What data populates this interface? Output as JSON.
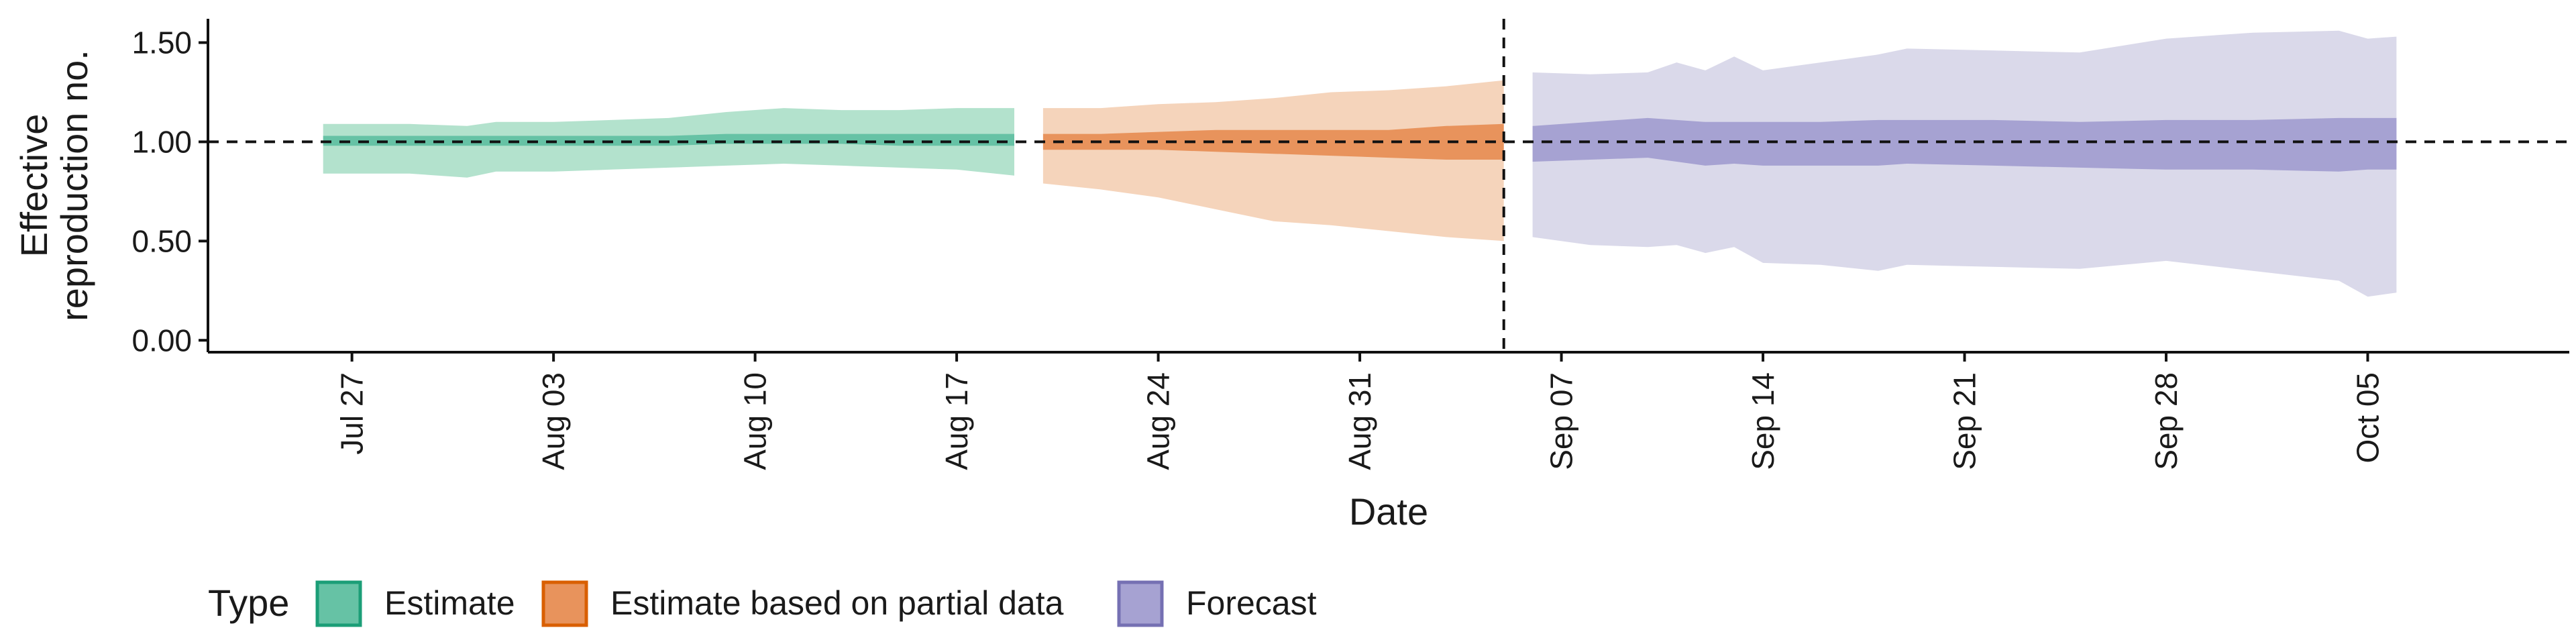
{
  "chart_data": {
    "type": "area",
    "xlabel": "Date",
    "ylabel_lines": [
      "Effective",
      "reproduction no."
    ],
    "x_axis": {
      "start": "2020-07-22",
      "end": "2020-10-12",
      "ticks": [
        {
          "date": "2020-07-27",
          "label": "Jul 27"
        },
        {
          "date": "2020-08-03",
          "label": "Aug 03"
        },
        {
          "date": "2020-08-10",
          "label": "Aug 10"
        },
        {
          "date": "2020-08-17",
          "label": "Aug 17"
        },
        {
          "date": "2020-08-24",
          "label": "Aug 24"
        },
        {
          "date": "2020-08-31",
          "label": "Aug 31"
        },
        {
          "date": "2020-09-07",
          "label": "Sep 07"
        },
        {
          "date": "2020-09-14",
          "label": "Sep 14"
        },
        {
          "date": "2020-09-21",
          "label": "Sep 21"
        },
        {
          "date": "2020-09-28",
          "label": "Sep 28"
        },
        {
          "date": "2020-10-05",
          "label": "Oct 05"
        }
      ]
    },
    "y_axis": {
      "range": [
        -0.06,
        1.62
      ],
      "ticks": [
        {
          "value": 0,
          "label": "0.00"
        },
        {
          "value": 0.5,
          "label": "0.50"
        },
        {
          "value": 1.0,
          "label": "1.00"
        },
        {
          "value": 1.5,
          "label": "1.50"
        }
      ]
    },
    "reference_lines": {
      "horizontal_y": 1.0,
      "vertical_date": "2020-09-05"
    },
    "legend": {
      "title": "Type",
      "position": "bottom-left",
      "items": [
        "Estimate",
        "Estimate based on partial data",
        "Forecast"
      ]
    },
    "series": [
      {
        "name": "Estimate",
        "fill_outer": "#b3e2cd",
        "fill_inner": "#66c2a5",
        "edge": "#1b9e77",
        "points": [
          {
            "date": "2020-07-26",
            "lo90": 0.84,
            "hi90": 1.09,
            "lo20": 0.98,
            "hi20": 1.03
          },
          {
            "date": "2020-07-29",
            "lo90": 0.84,
            "hi90": 1.09,
            "lo20": 0.98,
            "hi20": 1.03
          },
          {
            "date": "2020-07-31",
            "lo90": 0.82,
            "hi90": 1.08,
            "lo20": 0.98,
            "hi20": 1.03
          },
          {
            "date": "2020-08-01",
            "lo90": 0.85,
            "hi90": 1.1,
            "lo20": 0.98,
            "hi20": 1.03
          },
          {
            "date": "2020-08-03",
            "lo90": 0.85,
            "hi90": 1.1,
            "lo20": 0.98,
            "hi20": 1.03
          },
          {
            "date": "2020-08-05",
            "lo90": 0.86,
            "hi90": 1.11,
            "lo20": 0.98,
            "hi20": 1.03
          },
          {
            "date": "2020-08-07",
            "lo90": 0.87,
            "hi90": 1.12,
            "lo20": 0.98,
            "hi20": 1.03
          },
          {
            "date": "2020-08-09",
            "lo90": 0.88,
            "hi90": 1.15,
            "lo20": 0.99,
            "hi20": 1.04
          },
          {
            "date": "2020-08-11",
            "lo90": 0.89,
            "hi90": 1.17,
            "lo20": 0.99,
            "hi20": 1.04
          },
          {
            "date": "2020-08-13",
            "lo90": 0.88,
            "hi90": 1.16,
            "lo20": 0.99,
            "hi20": 1.04
          },
          {
            "date": "2020-08-15",
            "lo90": 0.87,
            "hi90": 1.16,
            "lo20": 0.98,
            "hi20": 1.04
          },
          {
            "date": "2020-08-17",
            "lo90": 0.86,
            "hi90": 1.17,
            "lo20": 0.98,
            "hi20": 1.04
          },
          {
            "date": "2020-08-19",
            "lo90": 0.83,
            "hi90": 1.17,
            "lo20": 0.98,
            "hi20": 1.04
          }
        ]
      },
      {
        "name": "Estimate based on partial data",
        "fill_outer": "#f5d4bb",
        "fill_inner": "#e8935c",
        "edge": "#d95f02",
        "points": [
          {
            "date": "2020-08-20",
            "lo90": 0.79,
            "hi90": 1.17,
            "lo20": 0.96,
            "hi20": 1.04
          },
          {
            "date": "2020-08-22",
            "lo90": 0.76,
            "hi90": 1.17,
            "lo20": 0.96,
            "hi20": 1.04
          },
          {
            "date": "2020-08-24",
            "lo90": 0.72,
            "hi90": 1.19,
            "lo20": 0.96,
            "hi20": 1.05
          },
          {
            "date": "2020-08-26",
            "lo90": 0.66,
            "hi90": 1.2,
            "lo20": 0.95,
            "hi20": 1.06
          },
          {
            "date": "2020-08-28",
            "lo90": 0.6,
            "hi90": 1.22,
            "lo20": 0.94,
            "hi20": 1.06
          },
          {
            "date": "2020-08-30",
            "lo90": 0.58,
            "hi90": 1.25,
            "lo20": 0.93,
            "hi20": 1.06
          },
          {
            "date": "2020-09-01",
            "lo90": 0.55,
            "hi90": 1.26,
            "lo20": 0.92,
            "hi20": 1.06
          },
          {
            "date": "2020-09-03",
            "lo90": 0.52,
            "hi90": 1.28,
            "lo20": 0.91,
            "hi20": 1.08
          },
          {
            "date": "2020-09-05",
            "lo90": 0.5,
            "hi90": 1.31,
            "lo20": 0.91,
            "hi20": 1.09
          }
        ]
      },
      {
        "name": "Forecast",
        "fill_outer": "#dad9ea",
        "fill_inner": "#a6a2d2",
        "edge": "#7570b3",
        "points": [
          {
            "date": "2020-09-06",
            "lo90": 0.52,
            "hi90": 1.35,
            "lo20": 0.9,
            "hi20": 1.08
          },
          {
            "date": "2020-09-08",
            "lo90": 0.48,
            "hi90": 1.34,
            "lo20": 0.91,
            "hi20": 1.1
          },
          {
            "date": "2020-09-10",
            "lo90": 0.47,
            "hi90": 1.35,
            "lo20": 0.92,
            "hi20": 1.12
          },
          {
            "date": "2020-09-11",
            "lo90": 0.48,
            "hi90": 1.4,
            "lo20": 0.9,
            "hi20": 1.11
          },
          {
            "date": "2020-09-12",
            "lo90": 0.44,
            "hi90": 1.36,
            "lo20": 0.88,
            "hi20": 1.1
          },
          {
            "date": "2020-09-13",
            "lo90": 0.47,
            "hi90": 1.43,
            "lo20": 0.89,
            "hi20": 1.1
          },
          {
            "date": "2020-09-14",
            "lo90": 0.39,
            "hi90": 1.36,
            "lo20": 0.88,
            "hi20": 1.1
          },
          {
            "date": "2020-09-16",
            "lo90": 0.38,
            "hi90": 1.4,
            "lo20": 0.88,
            "hi20": 1.1
          },
          {
            "date": "2020-09-18",
            "lo90": 0.35,
            "hi90": 1.44,
            "lo20": 0.88,
            "hi20": 1.11
          },
          {
            "date": "2020-09-19",
            "lo90": 0.38,
            "hi90": 1.47,
            "lo20": 0.89,
            "hi20": 1.11
          },
          {
            "date": "2020-09-22",
            "lo90": 0.37,
            "hi90": 1.46,
            "lo20": 0.88,
            "hi20": 1.11
          },
          {
            "date": "2020-09-25",
            "lo90": 0.36,
            "hi90": 1.45,
            "lo20": 0.87,
            "hi20": 1.1
          },
          {
            "date": "2020-09-28",
            "lo90": 0.4,
            "hi90": 1.52,
            "lo20": 0.86,
            "hi20": 1.11
          },
          {
            "date": "2020-10-01",
            "lo90": 0.35,
            "hi90": 1.55,
            "lo20": 0.86,
            "hi20": 1.11
          },
          {
            "date": "2020-10-04",
            "lo90": 0.3,
            "hi90": 1.56,
            "lo20": 0.85,
            "hi20": 1.12
          },
          {
            "date": "2020-10-05",
            "lo90": 0.22,
            "hi90": 1.52,
            "lo20": 0.86,
            "hi20": 1.12
          },
          {
            "date": "2020-10-06",
            "lo90": 0.24,
            "hi90": 1.53,
            "lo20": 0.86,
            "hi20": 1.12
          }
        ]
      }
    ]
  }
}
